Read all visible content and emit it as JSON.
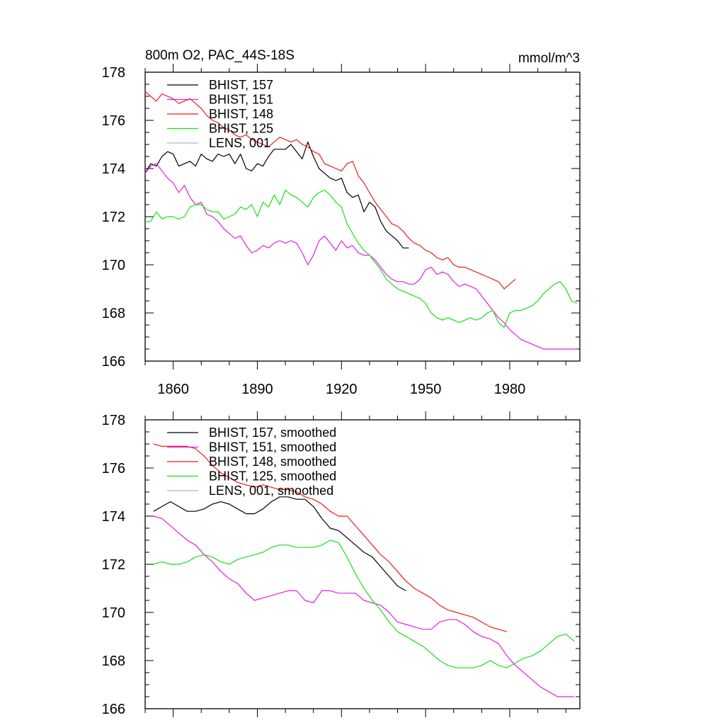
{
  "chart_data": [
    {
      "type": "line",
      "title_left": "800m O2, PAC_44S-18S",
      "title_right": "mmol/m^3",
      "xlim": [
        1850,
        2005
      ],
      "ylim": [
        166,
        178
      ],
      "xticks": [
        1860,
        1890,
        1920,
        1950,
        1980
      ],
      "xtick_labels": [
        "1860",
        "1890",
        "1920",
        "1950",
        "1980"
      ],
      "show_xtick_labels": true,
      "yticks": [
        166,
        168,
        170,
        172,
        174,
        176,
        178
      ],
      "ytick_labels": [
        "166",
        "168",
        "170",
        "172",
        "174",
        "176",
        "178"
      ],
      "legend": {
        "location": "top-left"
      },
      "series": [
        {
          "name": "BHIST, 157",
          "color": "#000000",
          "x": [
            1850,
            1852,
            1854,
            1856,
            1858,
            1860,
            1862,
            1864,
            1866,
            1868,
            1870,
            1872,
            1874,
            1876,
            1878,
            1880,
            1882,
            1884,
            1886,
            1888,
            1890,
            1892,
            1894,
            1896,
            1898,
            1900,
            1902,
            1904,
            1906,
            1908,
            1910,
            1912,
            1914,
            1916,
            1918,
            1920,
            1922,
            1924,
            1926,
            1928,
            1930,
            1932,
            1934,
            1936,
            1938,
            1940,
            1942,
            1944
          ],
          "values": [
            173.8,
            174.2,
            174.1,
            174.5,
            174.7,
            174.6,
            174.1,
            174.2,
            174.3,
            174.1,
            174.6,
            174.4,
            174.3,
            174.6,
            174.5,
            174.6,
            174.2,
            174.6,
            174.0,
            173.9,
            174.2,
            174.1,
            174.5,
            174.8,
            174.8,
            174.8,
            175.0,
            174.7,
            174.4,
            175.1,
            174.5,
            174.0,
            173.8,
            173.6,
            173.5,
            173.6,
            173.0,
            172.8,
            172.9,
            172.2,
            172.6,
            172.4,
            171.8,
            171.4,
            171.2,
            171.0,
            170.7,
            170.7
          ]
        },
        {
          "name": "BHIST, 151",
          "color": "#e020e0",
          "x": [
            1850,
            1852,
            1854,
            1856,
            1858,
            1860,
            1862,
            1864,
            1866,
            1868,
            1870,
            1872,
            1874,
            1876,
            1878,
            1880,
            1882,
            1884,
            1886,
            1888,
            1890,
            1892,
            1894,
            1896,
            1898,
            1900,
            1902,
            1904,
            1906,
            1908,
            1910,
            1912,
            1914,
            1916,
            1918,
            1920,
            1922,
            1924,
            1926,
            1928,
            1930,
            1932,
            1934,
            1936,
            1938,
            1940,
            1942,
            1944,
            1946,
            1948,
            1950,
            1952,
            1954,
            1956,
            1958,
            1960,
            1962,
            1964,
            1966,
            1968,
            1970,
            1972,
            1974,
            1976,
            1978,
            1980,
            1982,
            1984,
            1986,
            1988,
            1990,
            1992,
            1994,
            1996,
            1998,
            2000,
            2002,
            2004
          ],
          "values": [
            173.8,
            174.1,
            174.2,
            173.9,
            173.6,
            173.4,
            173.0,
            173.3,
            172.8,
            172.5,
            172.6,
            172.1,
            172.0,
            171.8,
            171.5,
            171.3,
            171.1,
            171.2,
            170.8,
            170.5,
            170.6,
            170.8,
            170.7,
            170.9,
            171.0,
            170.9,
            171.0,
            170.9,
            170.5,
            170.0,
            170.4,
            171.0,
            171.2,
            170.9,
            170.6,
            171.0,
            170.7,
            170.8,
            170.5,
            170.4,
            170.4,
            170.2,
            169.9,
            169.6,
            169.4,
            169.3,
            169.3,
            169.2,
            169.2,
            169.4,
            169.8,
            169.9,
            169.6,
            169.7,
            169.6,
            169.3,
            169.1,
            169.2,
            169.1,
            169.0,
            168.7,
            168.4,
            168.1,
            167.8,
            167.6,
            167.3,
            167.1,
            166.9,
            166.8,
            166.7,
            166.6,
            166.5,
            166.5,
            166.5,
            166.5,
            166.5,
            166.5,
            166.5
          ]
        },
        {
          "name": "BHIST, 148",
          "color": "#ee1c1c",
          "x": [
            1850,
            1852,
            1854,
            1856,
            1858,
            1860,
            1862,
            1864,
            1866,
            1868,
            1870,
            1872,
            1874,
            1876,
            1878,
            1880,
            1882,
            1884,
            1886,
            1888,
            1890,
            1892,
            1894,
            1896,
            1898,
            1900,
            1902,
            1904,
            1906,
            1908,
            1910,
            1912,
            1914,
            1916,
            1918,
            1920,
            1922,
            1924,
            1926,
            1928,
            1930,
            1932,
            1934,
            1936,
            1938,
            1940,
            1942,
            1944,
            1946,
            1948,
            1950,
            1952,
            1954,
            1956,
            1958,
            1960,
            1962,
            1964,
            1966,
            1968,
            1970,
            1972,
            1974,
            1976,
            1978,
            1980,
            1982
          ],
          "values": [
            177.2,
            177.0,
            176.8,
            177.1,
            177.0,
            176.9,
            176.7,
            176.8,
            176.9,
            176.7,
            176.5,
            176.2,
            176.0,
            175.9,
            175.7,
            175.6,
            175.4,
            175.3,
            175.4,
            175.2,
            175.1,
            175.0,
            174.9,
            175.1,
            175.3,
            175.2,
            175.1,
            175.2,
            175.0,
            174.9,
            174.7,
            174.6,
            174.2,
            174.1,
            174.0,
            173.9,
            174.2,
            174.3,
            173.7,
            173.4,
            173.0,
            172.6,
            172.3,
            172.0,
            171.7,
            171.6,
            171.4,
            171.1,
            170.9,
            170.8,
            170.6,
            170.5,
            170.3,
            170.2,
            170.3,
            170.0,
            169.9,
            169.9,
            169.8,
            169.7,
            169.6,
            169.5,
            169.4,
            169.3,
            169.0,
            169.2,
            169.4
          ]
        },
        {
          "name": "BHIST, 125",
          "color": "#18e018",
          "x": [
            1850,
            1852,
            1854,
            1856,
            1858,
            1860,
            1862,
            1864,
            1866,
            1868,
            1870,
            1872,
            1874,
            1876,
            1878,
            1880,
            1882,
            1884,
            1886,
            1888,
            1890,
            1892,
            1894,
            1896,
            1898,
            1900,
            1902,
            1904,
            1906,
            1908,
            1910,
            1912,
            1914,
            1916,
            1918,
            1920,
            1922,
            1924,
            1926,
            1928,
            1930,
            1932,
            1934,
            1936,
            1938,
            1940,
            1942,
            1944,
            1946,
            1948,
            1950,
            1952,
            1954,
            1956,
            1958,
            1960,
            1962,
            1964,
            1966,
            1968,
            1970,
            1972,
            1974,
            1976,
            1978,
            1980,
            1982,
            1984,
            1986,
            1988,
            1990,
            1992,
            1994,
            1996,
            1998,
            2000,
            2002,
            2004
          ],
          "values": [
            171.8,
            171.8,
            172.2,
            171.9,
            172.0,
            172.0,
            171.9,
            172.0,
            172.4,
            172.5,
            172.5,
            172.3,
            172.2,
            172.2,
            171.9,
            172.0,
            172.1,
            172.4,
            172.3,
            172.5,
            172.0,
            172.6,
            172.4,
            172.9,
            172.5,
            173.1,
            172.9,
            172.8,
            172.6,
            172.4,
            172.8,
            173.0,
            173.1,
            172.9,
            172.6,
            172.4,
            171.7,
            171.3,
            170.9,
            170.6,
            170.4,
            170.1,
            169.8,
            169.4,
            169.2,
            169.0,
            168.9,
            168.8,
            168.7,
            168.6,
            168.4,
            168.0,
            167.8,
            167.7,
            167.8,
            167.7,
            167.6,
            167.7,
            167.8,
            167.7,
            167.8,
            168.0,
            168.1,
            167.6,
            167.4,
            168.0,
            168.1,
            168.1,
            168.2,
            168.3,
            168.5,
            168.8,
            169.0,
            169.2,
            169.3,
            169.0,
            168.5,
            168.4
          ]
        },
        {
          "name": "LENS, 001",
          "color": "#b4b4b4",
          "x": [],
          "values": []
        }
      ]
    },
    {
      "type": "line",
      "xlim": [
        1850,
        2005
      ],
      "ylim": [
        166,
        178
      ],
      "xticks": [
        1860,
        1890,
        1920,
        1950,
        1980
      ],
      "show_xtick_labels": false,
      "yticks": [
        166,
        168,
        170,
        172,
        174,
        176,
        178
      ],
      "ytick_labels": [
        "166",
        "168",
        "170",
        "172",
        "174",
        "176",
        "178"
      ],
      "legend": {
        "location": "top-left"
      },
      "series": [
        {
          "name": "BHIST, 157, smoothed",
          "color": "#000000",
          "x": [
            1853,
            1856,
            1859,
            1862,
            1865,
            1868,
            1871,
            1874,
            1877,
            1880,
            1883,
            1886,
            1889,
            1892,
            1895,
            1898,
            1901,
            1904,
            1907,
            1910,
            1913,
            1916,
            1919,
            1922,
            1925,
            1928,
            1931,
            1934,
            1937,
            1940,
            1943
          ],
          "values": [
            174.2,
            174.4,
            174.6,
            174.4,
            174.2,
            174.2,
            174.3,
            174.5,
            174.6,
            174.5,
            174.3,
            174.1,
            174.1,
            174.3,
            174.6,
            174.8,
            174.8,
            174.7,
            174.7,
            174.4,
            173.9,
            173.5,
            173.4,
            173.1,
            172.8,
            172.5,
            172.3,
            171.9,
            171.5,
            171.1,
            170.9
          ]
        },
        {
          "name": "BHIST, 151, smoothed",
          "color": "#e020e0",
          "x": [
            1853,
            1856,
            1859,
            1862,
            1865,
            1868,
            1871,
            1874,
            1877,
            1880,
            1883,
            1886,
            1889,
            1892,
            1895,
            1898,
            1901,
            1904,
            1907,
            1910,
            1913,
            1916,
            1919,
            1922,
            1925,
            1928,
            1931,
            1934,
            1937,
            1940,
            1943,
            1946,
            1949,
            1952,
            1955,
            1958,
            1961,
            1964,
            1967,
            1970,
            1973,
            1976,
            1979,
            1982,
            1985,
            1988,
            1991,
            1994,
            1997,
            2000,
            2003
          ],
          "values": [
            174.0,
            173.9,
            173.6,
            173.3,
            173.0,
            172.8,
            172.4,
            172.1,
            171.7,
            171.4,
            171.2,
            170.8,
            170.5,
            170.6,
            170.7,
            170.8,
            170.9,
            170.9,
            170.5,
            170.4,
            170.9,
            170.9,
            170.8,
            170.8,
            170.8,
            170.5,
            170.4,
            170.3,
            170.0,
            169.6,
            169.5,
            169.4,
            169.3,
            169.3,
            169.6,
            169.7,
            169.7,
            169.5,
            169.2,
            169.0,
            168.9,
            168.7,
            168.2,
            167.8,
            167.5,
            167.2,
            166.9,
            166.7,
            166.5,
            166.5,
            166.5
          ]
        },
        {
          "name": "BHIST, 148, smoothed",
          "color": "#ee1c1c",
          "x": [
            1853,
            1856,
            1859,
            1862,
            1865,
            1868,
            1871,
            1874,
            1877,
            1880,
            1883,
            1886,
            1889,
            1892,
            1895,
            1898,
            1901,
            1904,
            1907,
            1910,
            1913,
            1916,
            1919,
            1922,
            1925,
            1928,
            1931,
            1934,
            1937,
            1940,
            1943,
            1946,
            1949,
            1952,
            1955,
            1958,
            1961,
            1964,
            1967,
            1970,
            1973,
            1976,
            1979
          ],
          "values": [
            177.0,
            176.9,
            176.9,
            176.9,
            176.9,
            176.8,
            176.5,
            176.1,
            175.8,
            175.6,
            175.4,
            175.3,
            175.2,
            175.3,
            175.2,
            175.1,
            175.1,
            175.0,
            174.8,
            174.7,
            174.5,
            174.2,
            174.0,
            174.0,
            173.6,
            173.2,
            172.8,
            172.4,
            172.1,
            171.7,
            171.3,
            171.0,
            170.8,
            170.6,
            170.3,
            170.1,
            170.0,
            169.9,
            169.8,
            169.6,
            169.4,
            169.3,
            169.2
          ]
        },
        {
          "name": "BHIST, 125, smoothed",
          "color": "#18e018",
          "x": [
            1853,
            1856,
            1859,
            1862,
            1865,
            1868,
            1871,
            1874,
            1877,
            1880,
            1883,
            1886,
            1889,
            1892,
            1895,
            1898,
            1901,
            1904,
            1907,
            1910,
            1913,
            1916,
            1919,
            1922,
            1925,
            1928,
            1931,
            1934,
            1937,
            1940,
            1943,
            1946,
            1949,
            1952,
            1955,
            1958,
            1961,
            1964,
            1967,
            1970,
            1973,
            1976,
            1979,
            1982,
            1985,
            1988,
            1991,
            1994,
            1997,
            2000,
            2003
          ],
          "values": [
            172.0,
            172.1,
            172.0,
            172.0,
            172.1,
            172.3,
            172.4,
            172.3,
            172.1,
            172.0,
            172.2,
            172.3,
            172.4,
            172.5,
            172.7,
            172.8,
            172.8,
            172.7,
            172.7,
            172.7,
            172.8,
            173.0,
            172.9,
            172.3,
            171.6,
            171.0,
            170.5,
            170.1,
            169.6,
            169.2,
            169.0,
            168.8,
            168.6,
            168.3,
            168.0,
            167.8,
            167.7,
            167.7,
            167.7,
            167.8,
            168.0,
            167.8,
            167.7,
            167.9,
            168.1,
            168.2,
            168.4,
            168.7,
            169.0,
            169.1,
            168.8
          ]
        },
        {
          "name": "LENS, 001, smoothed",
          "color": "#b4b4b4",
          "x": [],
          "values": []
        }
      ]
    }
  ]
}
